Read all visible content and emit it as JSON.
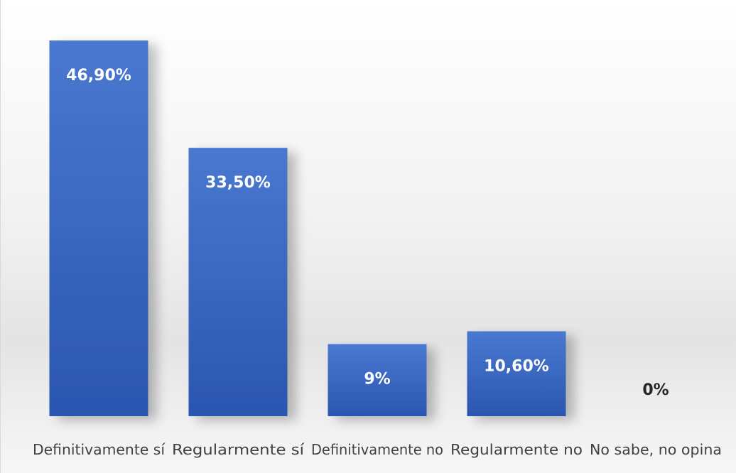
{
  "chart_data": {
    "type": "bar",
    "categories": [
      "Definitivamente sí",
      "Regularmente sí",
      "Definitivamente no",
      "Regularmente no",
      "No sabe, no opina"
    ],
    "values": [
      46.9,
      33.5,
      9,
      10.6,
      0
    ],
    "data_labels": [
      "46,90%",
      "33,50%",
      "9%",
      "10,60%",
      "0%"
    ],
    "title": "",
    "xlabel": "",
    "ylabel": "",
    "ylim": [
      0,
      50
    ],
    "grid": false,
    "legend": "none",
    "colors": {
      "bar_top": "#4a78d0",
      "bar_bottom": "#2a56b0"
    }
  }
}
